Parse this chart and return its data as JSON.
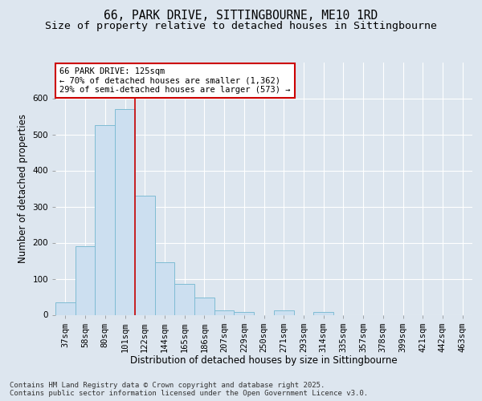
{
  "title1": "66, PARK DRIVE, SITTINGBOURNE, ME10 1RD",
  "title2": "Size of property relative to detached houses in Sittingbourne",
  "xlabel": "Distribution of detached houses by size in Sittingbourne",
  "ylabel": "Number of detached properties",
  "categories": [
    "37sqm",
    "58sqm",
    "80sqm",
    "101sqm",
    "122sqm",
    "144sqm",
    "165sqm",
    "186sqm",
    "207sqm",
    "229sqm",
    "250sqm",
    "271sqm",
    "293sqm",
    "314sqm",
    "335sqm",
    "357sqm",
    "378sqm",
    "399sqm",
    "421sqm",
    "442sqm",
    "463sqm"
  ],
  "values": [
    35,
    190,
    525,
    570,
    330,
    145,
    85,
    48,
    13,
    8,
    0,
    13,
    0,
    8,
    0,
    0,
    0,
    0,
    0,
    0,
    0
  ],
  "bar_color": "#ccdff0",
  "bar_edge_color": "#7fbcd4",
  "annotation_line1": "66 PARK DRIVE: 125sqm",
  "annotation_line2": "← 70% of detached houses are smaller (1,362)",
  "annotation_line3": "29% of semi-detached houses are larger (573) →",
  "annotation_box_color": "#ffffff",
  "annotation_box_edge_color": "#cc0000",
  "vline_color": "#cc0000",
  "ylim": [
    0,
    700
  ],
  "yticks": [
    0,
    100,
    200,
    300,
    400,
    500,
    600
  ],
  "background_color": "#dde6ef",
  "plot_bg_color": "#dde6ef",
  "grid_color": "#ffffff",
  "footer": "Contains HM Land Registry data © Crown copyright and database right 2025.\nContains public sector information licensed under the Open Government Licence v3.0.",
  "title_fontsize": 10.5,
  "subtitle_fontsize": 9.5,
  "axis_label_fontsize": 8.5,
  "tick_fontsize": 7.5,
  "annotation_fontsize": 7.5,
  "footer_fontsize": 6.5
}
